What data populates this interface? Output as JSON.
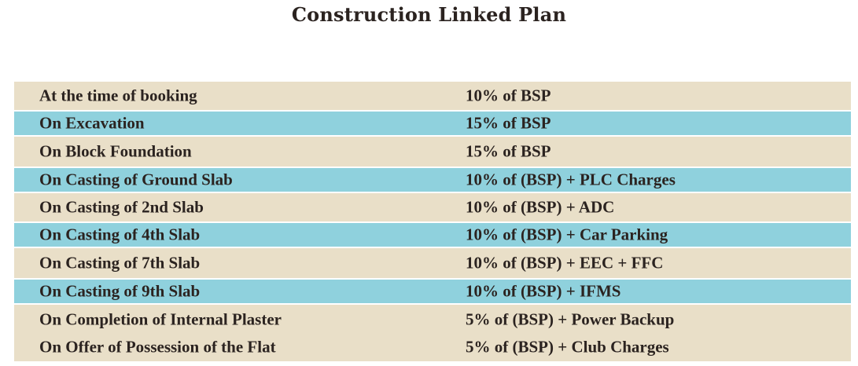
{
  "title": "Construction Linked Plan",
  "colors": {
    "beige_row": "#e9dfc8",
    "teal_row": "#8fd1dd",
    "text": "#2b2320"
  },
  "rows": [
    {
      "stage": "At the time of booking",
      "payment": "10% of BSP",
      "shade": "beige"
    },
    {
      "stage": "On Excavation",
      "payment": "15% of BSP",
      "shade": "teal"
    },
    {
      "stage": "On Block Foundation",
      "payment": "15% of BSP",
      "shade": "beige"
    },
    {
      "stage": "On Casting of Ground Slab",
      "payment": "10% of (BSP) + PLC Charges",
      "shade": "teal"
    },
    {
      "stage": "On Casting of 2nd Slab",
      "payment": "10% of (BSP) + ADC",
      "shade": "beige"
    },
    {
      "stage": "On Casting of 4th Slab",
      "payment": "10% of (BSP) + Car Parking",
      "shade": "teal"
    },
    {
      "stage": "On Casting of 7th Slab",
      "payment": "10% of (BSP) + EEC + FFC",
      "shade": "beige"
    },
    {
      "stage": "On Casting of 9th Slab",
      "payment": "10% of (BSP) + IFMS",
      "shade": "teal"
    },
    {
      "stage": "On Completion of Internal Plaster",
      "payment": "5% of (BSP) + Power Backup",
      "shade": "beige"
    },
    {
      "stage": "On Offer of Possession of the Flat",
      "payment": "5% of (BSP) + Club Charges",
      "shade": "beige"
    }
  ]
}
